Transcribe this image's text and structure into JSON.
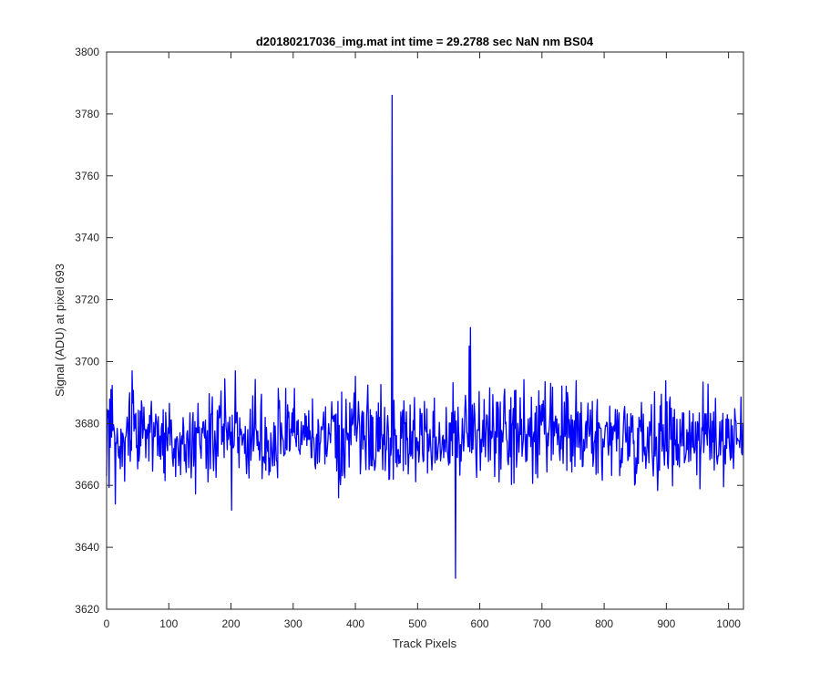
{
  "chart_data": {
    "type": "line",
    "title": "d20180217036_img.mat int time = 29.2788 sec  NaN nm BS04",
    "xlabel": "Track Pixels",
    "ylabel": "Signal (ADU) at pixel 693",
    "xlim": [
      0,
      1024
    ],
    "ylim": [
      3620,
      3800
    ],
    "xticks": [
      0,
      100,
      200,
      300,
      400,
      500,
      600,
      700,
      800,
      900,
      1000
    ],
    "yticks": [
      3620,
      3640,
      3660,
      3680,
      3700,
      3720,
      3740,
      3760,
      3780,
      3800
    ],
    "grid": false,
    "legend": "none",
    "series_color": "#0000ff",
    "series": [
      {
        "noise": {
          "n_points": 1024,
          "baseline": 3676,
          "typical_min": 3657,
          "typical_max": 3696
        },
        "notable_points": [
          {
            "x": 0,
            "y": 3663
          },
          {
            "x": 14,
            "y": 3654
          },
          {
            "x": 41,
            "y": 3697
          },
          {
            "x": 201,
            "y": 3652
          },
          {
            "x": 207,
            "y": 3697
          },
          {
            "x": 459,
            "y": 3786
          },
          {
            "x": 461,
            "y": 3662
          },
          {
            "x": 561,
            "y": 3630
          },
          {
            "x": 583,
            "y": 3705
          },
          {
            "x": 585,
            "y": 3711
          },
          {
            "x": 588,
            "y": 3686
          },
          {
            "x": 1023,
            "y": 3680
          }
        ]
      }
    ]
  }
}
